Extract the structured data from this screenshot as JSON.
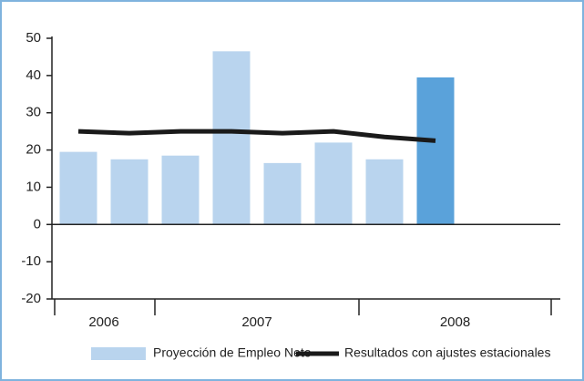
{
  "chart_data": {
    "type": "bar",
    "categories": [
      null,
      null,
      null,
      null,
      null,
      null,
      null,
      null,
      null,
      null
    ],
    "x_groups": [
      {
        "label": "2006",
        "span": 2
      },
      {
        "label": "2007",
        "span": 4
      },
      {
        "label": "2008",
        "span": 4
      }
    ],
    "series": [
      {
        "name": "Proyección de Empleo Neto",
        "type": "bar",
        "color": "#b9d4ee",
        "colors": [
          "#b9d4ee",
          "#b9d4ee",
          "#b9d4ee",
          "#b9d4ee",
          "#b9d4ee",
          "#b9d4ee",
          "#b9d4ee",
          "#5aa2da",
          null,
          null
        ],
        "values": [
          19.5,
          17.5,
          18.5,
          46.5,
          16.5,
          22,
          17.5,
          39.5,
          null,
          null
        ]
      },
      {
        "name": "Resultados con ajustes estacionales",
        "type": "line",
        "color": "#1a1a1a",
        "values": [
          25,
          24.5,
          25,
          25,
          24.5,
          25,
          23.5,
          22.5,
          null,
          null
        ]
      }
    ],
    "ylim": [
      -20,
      50
    ],
    "yticks": [
      -20,
      -10,
      0,
      10,
      20,
      30,
      40,
      50
    ],
    "legend": "bottom"
  }
}
